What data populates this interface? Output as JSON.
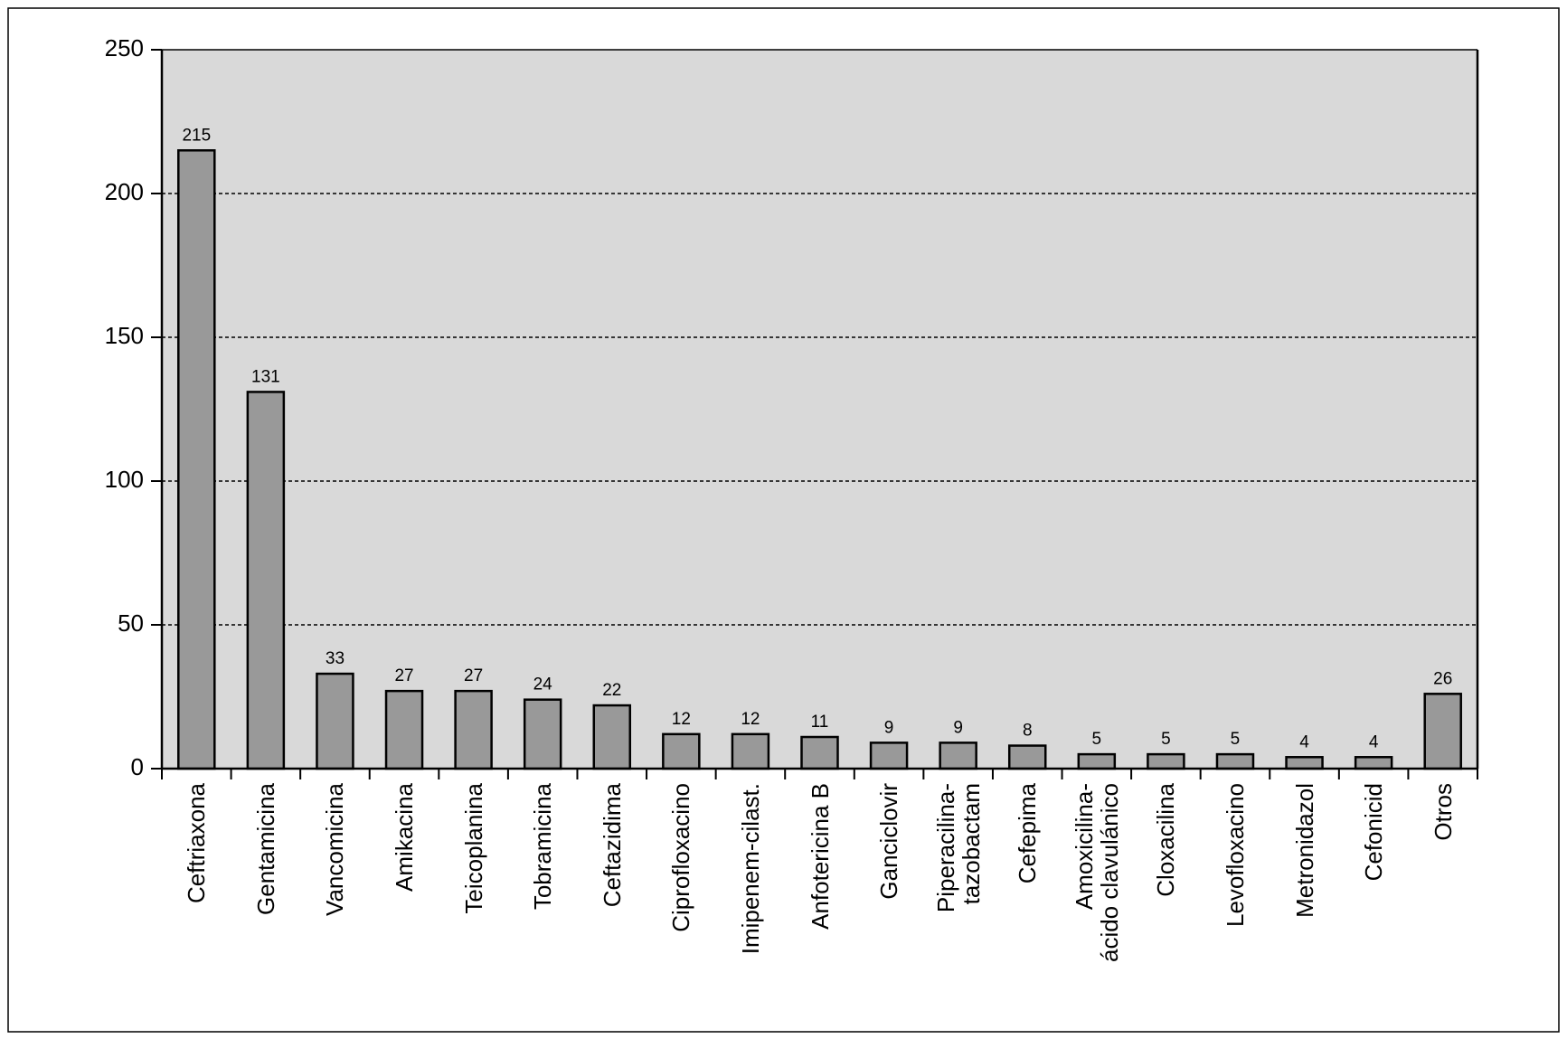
{
  "chart_data": {
    "type": "bar",
    "categories": [
      "Ceftriaxona",
      "Gentamicina",
      "Vancomicina",
      "Amikacina",
      "Teicoplanina",
      "Tobramicina",
      "Ceftazidima",
      "Ciprofloxacino",
      "Imipenem-cilast.",
      "Anfotericina B",
      "Ganciclovir",
      "Piperacilina-\ntazobactam",
      "Cefepima",
      "Amoxicilina-\nácido clavulánico",
      "Cloxacilina",
      "Levofloxacino",
      "Metronidazol",
      "Cefonicid",
      "Otros"
    ],
    "values": [
      215,
      131,
      33,
      27,
      27,
      24,
      22,
      12,
      12,
      11,
      9,
      9,
      8,
      5,
      5,
      5,
      4,
      4,
      26
    ],
    "color": "#999999",
    "background": "#d9d9d9",
    "ylim": [
      0,
      250
    ],
    "yticks": [
      0,
      50,
      100,
      150,
      200,
      250
    ],
    "grid": true
  }
}
